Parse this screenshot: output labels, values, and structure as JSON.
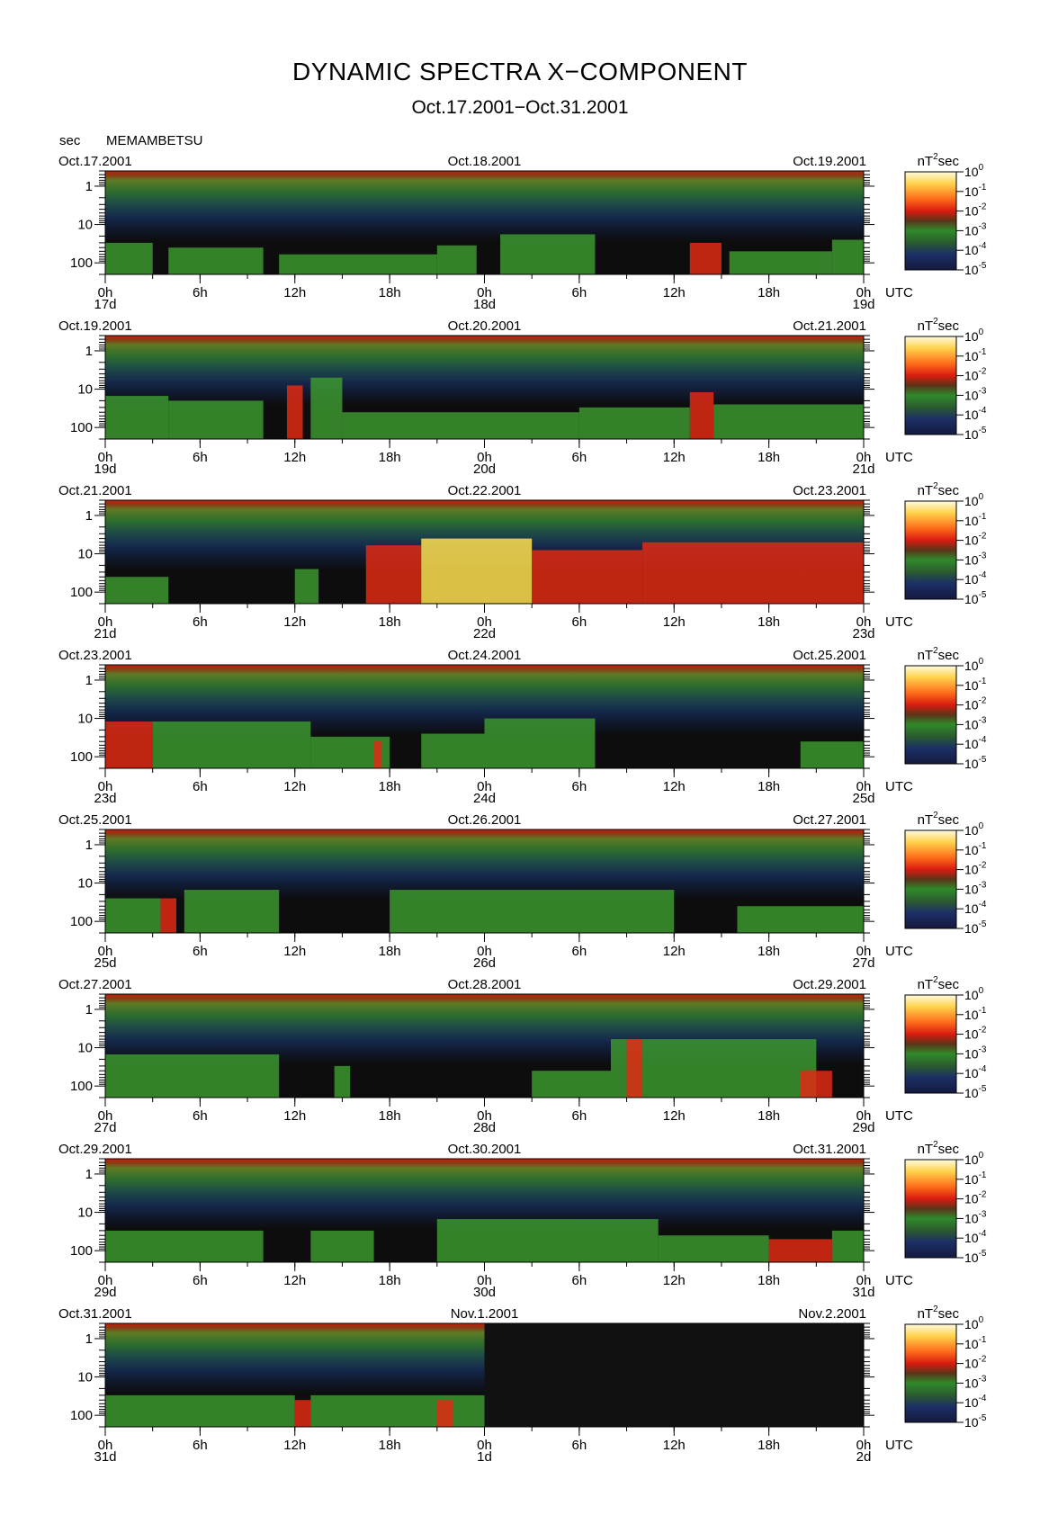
{
  "title": "DYNAMIC SPECTRA X−COMPONENT",
  "subtitle": "Oct.17.2001−Oct.31.2001",
  "unit_label": "sec",
  "station": "MEMAMBETSU",
  "colors": {
    "background": "#ffffff",
    "spectrum_bg": "#0d0d0d",
    "band_top": "#c81e0a",
    "band_green": "#2d6e2d",
    "band_navy": "#14284b",
    "activity_green": "#3c9630",
    "activity_red": "#e02a14",
    "activity_yellow": "#ffe050"
  },
  "chart_data": [
    {
      "type": "heatmap",
      "title": "",
      "xlabel": "UTC",
      "ylabel": "sec",
      "date_left": "Oct.17.2001",
      "date_mid": "Oct.18.2001",
      "date_right": "Oct.19.2001",
      "day_labels": [
        "17d",
        "18d",
        "19d"
      ],
      "x_ticks": [
        "0h",
        "6h",
        "12h",
        "18h",
        "0h",
        "6h",
        "12h",
        "18h",
        "0h"
      ],
      "xlim_hours": [
        0,
        48
      ],
      "y_ticks": [
        "1",
        "10",
        "100"
      ],
      "y_scale": "log",
      "ylim_sec": [
        0.4,
        200
      ],
      "colorbar": {
        "unit": "nT",
        "unit_exp": "2",
        "unit_suffix": "sec",
        "levels": [
          {
            "base": "10",
            "exp": "0"
          },
          {
            "base": "10",
            "exp": "-1"
          },
          {
            "base": "10",
            "exp": "-2"
          },
          {
            "base": "10",
            "exp": "-3"
          },
          {
            "base": "10",
            "exp": "-4"
          },
          {
            "base": "10",
            "exp": "-5"
          }
        ]
      },
      "activity": [
        {
          "start": 0,
          "end": 3,
          "max_period": 30,
          "level": "green"
        },
        {
          "start": 4,
          "end": 10,
          "max_period": 40,
          "level": "green"
        },
        {
          "start": 11,
          "end": 21,
          "max_period": 60,
          "level": "green"
        },
        {
          "start": 21,
          "end": 23.5,
          "max_period": 35,
          "level": "green"
        },
        {
          "start": 25,
          "end": 31,
          "max_period": 18,
          "level": "green"
        },
        {
          "start": 37,
          "end": 39,
          "max_period": 30,
          "level": "red"
        },
        {
          "start": 39.5,
          "end": 46,
          "max_period": 50,
          "level": "green"
        },
        {
          "start": 46,
          "end": 48,
          "max_period": 25,
          "level": "green"
        }
      ],
      "gap_from_hour": null
    },
    {
      "type": "heatmap",
      "title": "",
      "xlabel": "UTC",
      "ylabel": "sec",
      "date_left": "Oct.19.2001",
      "date_mid": "Oct.20.2001",
      "date_right": "Oct.21.2001",
      "day_labels": [
        "19d",
        "20d",
        "21d"
      ],
      "x_ticks": [
        "0h",
        "6h",
        "12h",
        "18h",
        "0h",
        "6h",
        "12h",
        "18h",
        "0h"
      ],
      "xlim_hours": [
        0,
        48
      ],
      "y_ticks": [
        "1",
        "10",
        "100"
      ],
      "y_scale": "log",
      "ylim_sec": [
        0.4,
        200
      ],
      "colorbar": {
        "unit": "nT",
        "unit_exp": "2",
        "unit_suffix": "sec",
        "levels": [
          {
            "base": "10",
            "exp": "0"
          },
          {
            "base": "10",
            "exp": "-1"
          },
          {
            "base": "10",
            "exp": "-2"
          },
          {
            "base": "10",
            "exp": "-3"
          },
          {
            "base": "10",
            "exp": "-4"
          },
          {
            "base": "10",
            "exp": "-5"
          }
        ]
      },
      "activity": [
        {
          "start": 0,
          "end": 4,
          "max_period": 15,
          "level": "green"
        },
        {
          "start": 4,
          "end": 10,
          "max_period": 20,
          "level": "green"
        },
        {
          "start": 11.5,
          "end": 12.5,
          "max_period": 8,
          "level": "red"
        },
        {
          "start": 13,
          "end": 15,
          "max_period": 5,
          "level": "green"
        },
        {
          "start": 15,
          "end": 30,
          "max_period": 40,
          "level": "green"
        },
        {
          "start": 30,
          "end": 37,
          "max_period": 30,
          "level": "green"
        },
        {
          "start": 37,
          "end": 38.5,
          "max_period": 12,
          "level": "red"
        },
        {
          "start": 38.5,
          "end": 48,
          "max_period": 25,
          "level": "green"
        }
      ],
      "gap_from_hour": null
    },
    {
      "type": "heatmap",
      "title": "",
      "xlabel": "UTC",
      "ylabel": "sec",
      "date_left": "Oct.21.2001",
      "date_mid": "Oct.22.2001",
      "date_right": "Oct.23.2001",
      "day_labels": [
        "21d",
        "22d",
        "23d"
      ],
      "x_ticks": [
        "0h",
        "6h",
        "12h",
        "18h",
        "0h",
        "6h",
        "12h",
        "18h",
        "0h"
      ],
      "xlim_hours": [
        0,
        48
      ],
      "y_ticks": [
        "1",
        "10",
        "100"
      ],
      "y_scale": "log",
      "ylim_sec": [
        0.4,
        200
      ],
      "colorbar": {
        "unit": "nT",
        "unit_exp": "2",
        "unit_suffix": "sec",
        "levels": [
          {
            "base": "10",
            "exp": "0"
          },
          {
            "base": "10",
            "exp": "-1"
          },
          {
            "base": "10",
            "exp": "-2"
          },
          {
            "base": "10",
            "exp": "-3"
          },
          {
            "base": "10",
            "exp": "-4"
          },
          {
            "base": "10",
            "exp": "-5"
          }
        ]
      },
      "activity": [
        {
          "start": 0,
          "end": 4,
          "max_period": 40,
          "level": "green"
        },
        {
          "start": 12,
          "end": 13.5,
          "max_period": 25,
          "level": "green"
        },
        {
          "start": 16.5,
          "end": 20,
          "max_period": 6,
          "level": "red"
        },
        {
          "start": 20,
          "end": 27,
          "max_period": 4,
          "level": "yellow"
        },
        {
          "start": 27,
          "end": 34,
          "max_period": 8,
          "level": "red"
        },
        {
          "start": 34,
          "end": 48,
          "max_period": 5,
          "level": "red"
        }
      ],
      "gap_from_hour": null
    },
    {
      "type": "heatmap",
      "title": "",
      "xlabel": "UTC",
      "ylabel": "sec",
      "date_left": "Oct.23.2001",
      "date_mid": "Oct.24.2001",
      "date_right": "Oct.25.2001",
      "day_labels": [
        "23d",
        "24d",
        "25d"
      ],
      "x_ticks": [
        "0h",
        "6h",
        "12h",
        "18h",
        "0h",
        "6h",
        "12h",
        "18h",
        "0h"
      ],
      "xlim_hours": [
        0,
        48
      ],
      "y_ticks": [
        "1",
        "10",
        "100"
      ],
      "y_scale": "log",
      "ylim_sec": [
        0.4,
        200
      ],
      "colorbar": {
        "unit": "nT",
        "unit_exp": "2",
        "unit_suffix": "sec",
        "levels": [
          {
            "base": "10",
            "exp": "0"
          },
          {
            "base": "10",
            "exp": "-1"
          },
          {
            "base": "10",
            "exp": "-2"
          },
          {
            "base": "10",
            "exp": "-3"
          },
          {
            "base": "10",
            "exp": "-4"
          },
          {
            "base": "10",
            "exp": "-5"
          }
        ]
      },
      "activity": [
        {
          "start": 0,
          "end": 3,
          "max_period": 12,
          "level": "red"
        },
        {
          "start": 3,
          "end": 13,
          "max_period": 12,
          "level": "green"
        },
        {
          "start": 13,
          "end": 18,
          "max_period": 30,
          "level": "green"
        },
        {
          "start": 17,
          "end": 17.5,
          "max_period": 40,
          "level": "red"
        },
        {
          "start": 20,
          "end": 24,
          "max_period": 25,
          "level": "green"
        },
        {
          "start": 24,
          "end": 31,
          "max_period": 10,
          "level": "green"
        },
        {
          "start": 44,
          "end": 48,
          "max_period": 40,
          "level": "green"
        }
      ],
      "gap_from_hour": null
    },
    {
      "type": "heatmap",
      "title": "",
      "xlabel": "UTC",
      "ylabel": "sec",
      "date_left": "Oct.25.2001",
      "date_mid": "Oct.26.2001",
      "date_right": "Oct.27.2001",
      "day_labels": [
        "25d",
        "26d",
        "27d"
      ],
      "x_ticks": [
        "0h",
        "6h",
        "12h",
        "18h",
        "0h",
        "6h",
        "12h",
        "18h",
        "0h"
      ],
      "xlim_hours": [
        0,
        48
      ],
      "y_ticks": [
        "1",
        "10",
        "100"
      ],
      "y_scale": "log",
      "ylim_sec": [
        0.4,
        200
      ],
      "colorbar": {
        "unit": "nT",
        "unit_exp": "2",
        "unit_suffix": "sec",
        "levels": [
          {
            "base": "10",
            "exp": "0"
          },
          {
            "base": "10",
            "exp": "-1"
          },
          {
            "base": "10",
            "exp": "-2"
          },
          {
            "base": "10",
            "exp": "-3"
          },
          {
            "base": "10",
            "exp": "-4"
          },
          {
            "base": "10",
            "exp": "-5"
          }
        ]
      },
      "activity": [
        {
          "start": 0,
          "end": 3.5,
          "max_period": 25,
          "level": "green"
        },
        {
          "start": 3.5,
          "end": 4.5,
          "max_period": 25,
          "level": "red"
        },
        {
          "start": 5,
          "end": 11,
          "max_period": 15,
          "level": "green"
        },
        {
          "start": 18,
          "end": 36,
          "max_period": 15,
          "level": "green"
        },
        {
          "start": 40,
          "end": 48,
          "max_period": 40,
          "level": "green"
        }
      ],
      "gap_from_hour": null
    },
    {
      "type": "heatmap",
      "title": "",
      "xlabel": "UTC",
      "ylabel": "sec",
      "date_left": "Oct.27.2001",
      "date_mid": "Oct.28.2001",
      "date_right": "Oct.29.2001",
      "day_labels": [
        "27d",
        "28d",
        "29d"
      ],
      "x_ticks": [
        "0h",
        "6h",
        "12h",
        "18h",
        "0h",
        "6h",
        "12h",
        "18h",
        "0h"
      ],
      "xlim_hours": [
        0,
        48
      ],
      "y_ticks": [
        "1",
        "10",
        "100"
      ],
      "y_scale": "log",
      "ylim_sec": [
        0.4,
        200
      ],
      "colorbar": {
        "unit": "nT",
        "unit_exp": "2",
        "unit_suffix": "sec",
        "levels": [
          {
            "base": "10",
            "exp": "0"
          },
          {
            "base": "10",
            "exp": "-1"
          },
          {
            "base": "10",
            "exp": "-2"
          },
          {
            "base": "10",
            "exp": "-3"
          },
          {
            "base": "10",
            "exp": "-4"
          },
          {
            "base": "10",
            "exp": "-5"
          }
        ]
      },
      "activity": [
        {
          "start": 0,
          "end": 11,
          "max_period": 15,
          "level": "green"
        },
        {
          "start": 14.5,
          "end": 15.5,
          "max_period": 30,
          "level": "green"
        },
        {
          "start": 27,
          "end": 32,
          "max_period": 40,
          "level": "green"
        },
        {
          "start": 32,
          "end": 45,
          "max_period": 6,
          "level": "green"
        },
        {
          "start": 33,
          "end": 34,
          "max_period": 6,
          "level": "red"
        },
        {
          "start": 44,
          "end": 46,
          "max_period": 40,
          "level": "red"
        }
      ],
      "gap_from_hour": null
    },
    {
      "type": "heatmap",
      "title": "",
      "xlabel": "UTC",
      "ylabel": "sec",
      "date_left": "Oct.29.2001",
      "date_mid": "Oct.30.2001",
      "date_right": "Oct.31.2001",
      "day_labels": [
        "29d",
        "30d",
        "31d"
      ],
      "x_ticks": [
        "0h",
        "6h",
        "12h",
        "18h",
        "0h",
        "6h",
        "12h",
        "18h",
        "0h"
      ],
      "xlim_hours": [
        0,
        48
      ],
      "y_ticks": [
        "1",
        "10",
        "100"
      ],
      "y_scale": "log",
      "ylim_sec": [
        0.4,
        200
      ],
      "colorbar": {
        "unit": "nT",
        "unit_exp": "2",
        "unit_suffix": "sec",
        "levels": [
          {
            "base": "10",
            "exp": "0"
          },
          {
            "base": "10",
            "exp": "-1"
          },
          {
            "base": "10",
            "exp": "-2"
          },
          {
            "base": "10",
            "exp": "-3"
          },
          {
            "base": "10",
            "exp": "-4"
          },
          {
            "base": "10",
            "exp": "-5"
          }
        ]
      },
      "activity": [
        {
          "start": 0,
          "end": 10,
          "max_period": 30,
          "level": "green"
        },
        {
          "start": 13,
          "end": 17,
          "max_period": 30,
          "level": "green"
        },
        {
          "start": 21,
          "end": 35,
          "max_period": 15,
          "level": "green"
        },
        {
          "start": 35,
          "end": 42,
          "max_period": 40,
          "level": "green"
        },
        {
          "start": 42,
          "end": 46,
          "max_period": 50,
          "level": "red"
        },
        {
          "start": 46,
          "end": 48,
          "max_period": 30,
          "level": "green"
        }
      ],
      "gap_from_hour": null
    },
    {
      "type": "heatmap",
      "title": "",
      "xlabel": "UTC",
      "ylabel": "sec",
      "date_left": "Oct.31.2001",
      "date_mid": "Nov.1.2001",
      "date_right": "Nov.2.2001",
      "day_labels": [
        "31d",
        "1d",
        "2d"
      ],
      "x_ticks": [
        "0h",
        "6h",
        "12h",
        "18h",
        "0h",
        "6h",
        "12h",
        "18h",
        "0h"
      ],
      "xlim_hours": [
        0,
        48
      ],
      "y_ticks": [
        "1",
        "10",
        "100"
      ],
      "y_scale": "log",
      "ylim_sec": [
        0.4,
        200
      ],
      "colorbar": {
        "unit": "nT",
        "unit_exp": "2",
        "unit_suffix": "sec",
        "levels": [
          {
            "base": "10",
            "exp": "0"
          },
          {
            "base": "10",
            "exp": "-1"
          },
          {
            "base": "10",
            "exp": "-2"
          },
          {
            "base": "10",
            "exp": "-3"
          },
          {
            "base": "10",
            "exp": "-4"
          },
          {
            "base": "10",
            "exp": "-5"
          }
        ]
      },
      "activity": [
        {
          "start": 0,
          "end": 12,
          "max_period": 30,
          "level": "green"
        },
        {
          "start": 12,
          "end": 13,
          "max_period": 40,
          "level": "red"
        },
        {
          "start": 13,
          "end": 24,
          "max_period": 30,
          "level": "green"
        },
        {
          "start": 21,
          "end": 22,
          "max_period": 40,
          "level": "red"
        }
      ],
      "gap_from_hour": 24
    }
  ]
}
